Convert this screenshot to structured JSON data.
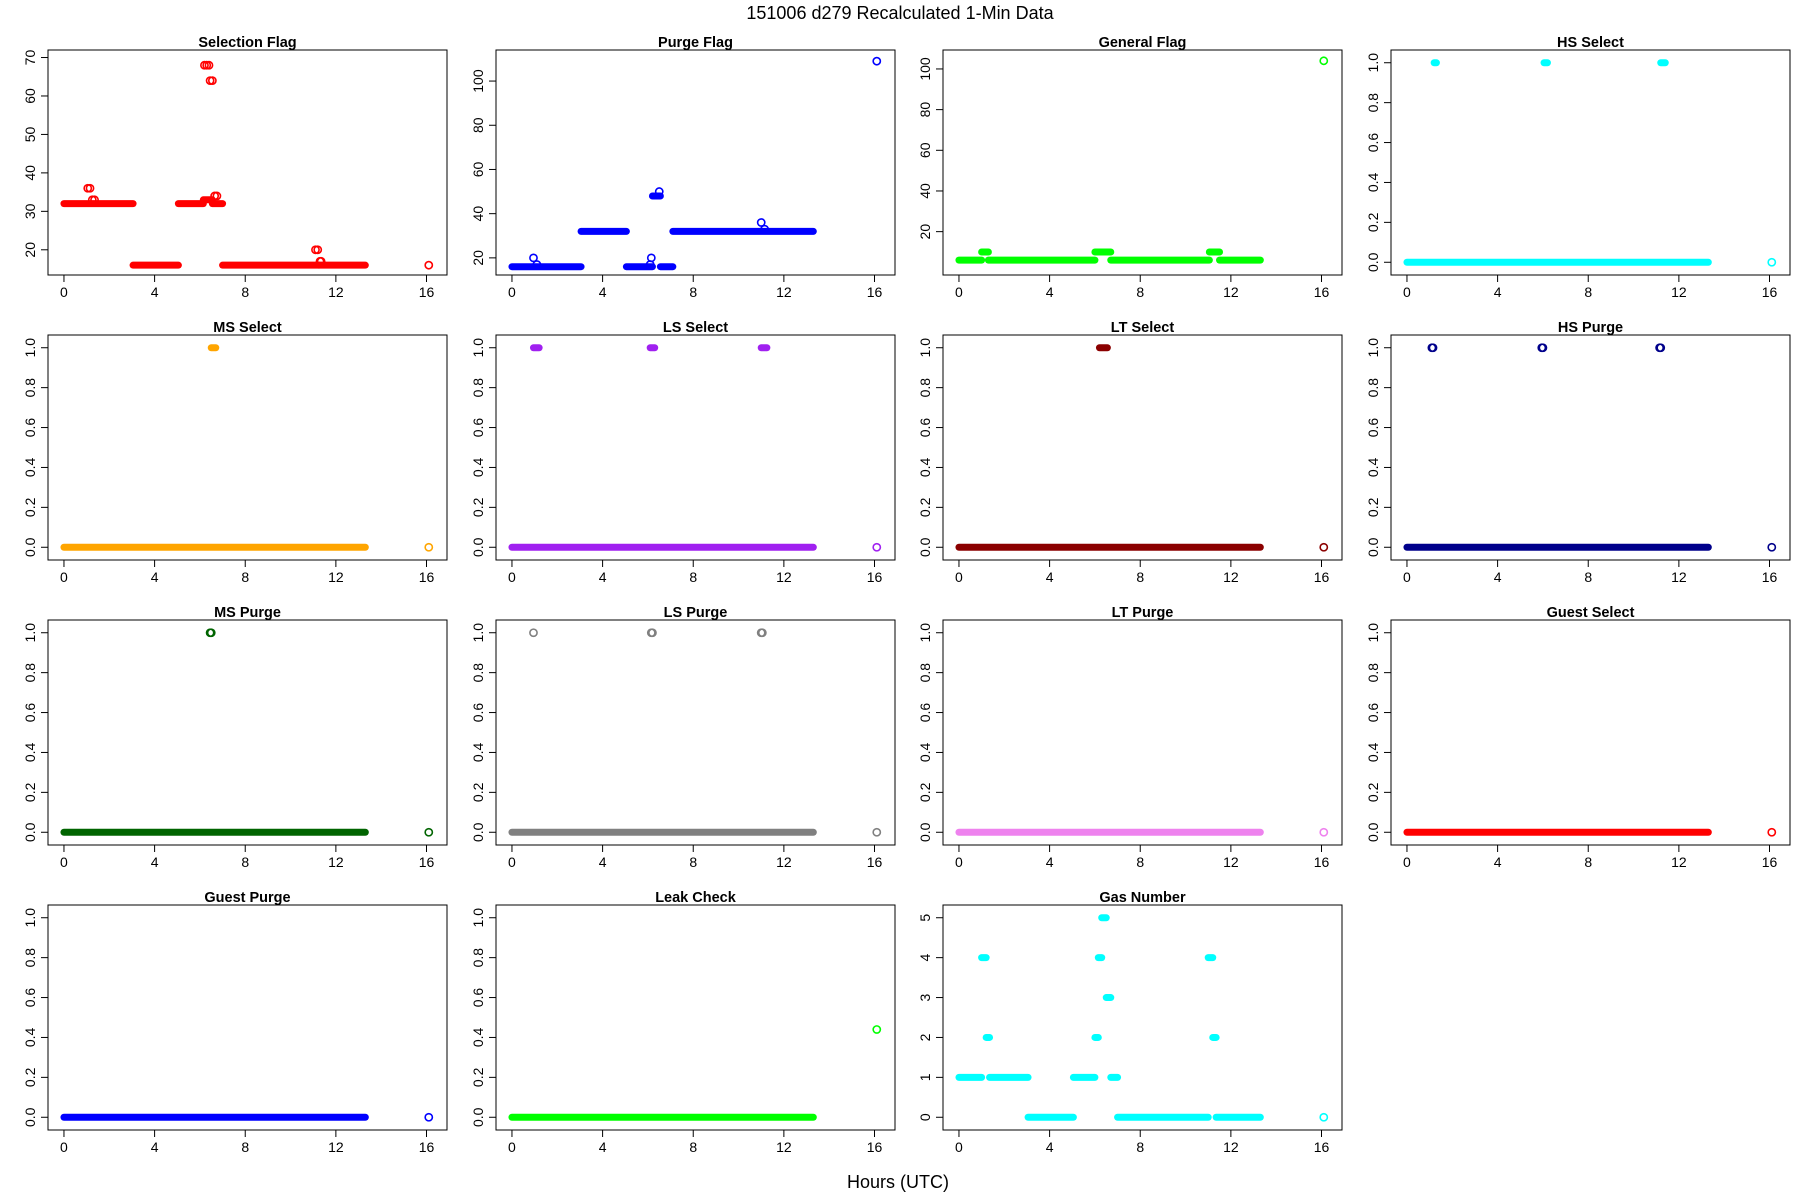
{
  "figure": {
    "title": "151006   d279   Recalculated 1-Min Data",
    "xlabel": "Hours (UTC)"
  },
  "chart_data": [
    {
      "type": "scatter",
      "title": "Selection Flag",
      "color": "#ff0000",
      "xlim": [
        0,
        16.2
      ],
      "xticks": [
        0,
        4,
        8,
        12,
        16
      ],
      "xtick_labels": [
        "0",
        "4",
        "8",
        "12",
        "16"
      ],
      "ylim": [
        15.2,
        70.2
      ],
      "yticks": [
        20,
        30,
        40,
        50,
        60,
        70
      ],
      "ytick_labels": [
        "20",
        "30",
        "40",
        "50",
        "60",
        "70"
      ],
      "segments": [
        [
          0,
          3.05,
          32
        ],
        [
          3.05,
          5.05,
          16
        ],
        [
          5.05,
          6.15,
          32
        ],
        [
          6.15,
          6.55,
          33
        ],
        [
          6.55,
          7.0,
          32
        ],
        [
          7.0,
          11.25,
          16
        ],
        [
          11.25,
          13.3,
          16
        ]
      ],
      "points": [
        [
          1.05,
          36
        ],
        [
          1.15,
          36
        ],
        [
          1.25,
          33
        ],
        [
          1.35,
          33
        ],
        [
          6.2,
          68
        ],
        [
          6.3,
          68
        ],
        [
          6.4,
          68
        ],
        [
          6.45,
          64
        ],
        [
          6.55,
          64
        ],
        [
          6.65,
          34
        ],
        [
          6.75,
          34
        ],
        [
          11.1,
          20
        ],
        [
          11.2,
          20
        ],
        [
          11.3,
          17
        ],
        [
          11.35,
          17
        ],
        [
          16.1,
          16
        ]
      ]
    },
    {
      "type": "scatter",
      "title": "Purge Flag",
      "color": "#0000ff",
      "xlim": [
        0,
        16.2
      ],
      "xticks": [
        0,
        4,
        8,
        12,
        16
      ],
      "xtick_labels": [
        "0",
        "4",
        "8",
        "12",
        "16"
      ],
      "ylim": [
        15.3,
        111
      ],
      "yticks": [
        20,
        40,
        60,
        80,
        100
      ],
      "ytick_labels": [
        "20",
        "40",
        "60",
        "80",
        "100"
      ],
      "segments": [
        [
          0,
          3.05,
          16
        ],
        [
          3.05,
          5.05,
          32
        ],
        [
          5.05,
          6.2,
          16
        ],
        [
          6.2,
          6.55,
          48
        ],
        [
          6.55,
          7.1,
          16
        ],
        [
          7.1,
          13.3,
          32
        ]
      ],
      "points": [
        [
          0.95,
          20
        ],
        [
          1.1,
          17
        ],
        [
          6.1,
          17
        ],
        [
          6.15,
          20
        ],
        [
          6.5,
          50
        ],
        [
          11.0,
          36
        ],
        [
          11.15,
          33
        ],
        [
          16.1,
          109
        ]
      ]
    },
    {
      "type": "scatter",
      "title": "General Flag",
      "color": "#00ff00",
      "xlim": [
        0,
        16.2
      ],
      "xticks": [
        0,
        4,
        8,
        12,
        16
      ],
      "xtick_labels": [
        "0",
        "4",
        "8",
        "12",
        "16"
      ],
      "ylim": [
        2,
        106
      ],
      "yticks": [
        20,
        40,
        60,
        80,
        100
      ],
      "ytick_labels": [
        "20",
        "40",
        "60",
        "80",
        "100"
      ],
      "segments": [
        [
          0,
          1.0,
          6
        ],
        [
          1.0,
          1.3,
          10
        ],
        [
          1.3,
          6.0,
          6
        ],
        [
          6.0,
          6.7,
          10
        ],
        [
          6.7,
          11.05,
          6
        ],
        [
          11.05,
          11.5,
          10
        ],
        [
          11.5,
          13.3,
          6
        ]
      ],
      "points": [
        [
          16.1,
          104
        ]
      ]
    },
    {
      "type": "scatter",
      "title": "HS Select",
      "color": "#00ffff",
      "xlim": [
        0,
        16.2
      ],
      "xticks": [
        0,
        4,
        8,
        12,
        16
      ],
      "xtick_labels": [
        "0",
        "4",
        "8",
        "12",
        "16"
      ],
      "ylim": [
        -0.03,
        1.03
      ],
      "yticks": [
        0,
        0.2,
        0.4,
        0.6,
        0.8,
        1
      ],
      "ytick_labels": [
        "0.0",
        "0.2",
        "0.4",
        "0.6",
        "0.8",
        "1.0"
      ],
      "segments": [
        [
          0,
          13.3,
          0
        ],
        [
          1.2,
          1.3,
          1
        ],
        [
          6.05,
          6.2,
          1
        ],
        [
          11.2,
          11.4,
          1
        ]
      ],
      "points": [
        [
          16.1,
          0
        ]
      ]
    },
    {
      "type": "scatter",
      "title": "MS Select",
      "color": "#ffa500",
      "xlim": [
        0,
        16.2
      ],
      "xticks": [
        0,
        4,
        8,
        12,
        16
      ],
      "xtick_labels": [
        "0",
        "4",
        "8",
        "12",
        "16"
      ],
      "ylim": [
        -0.03,
        1.03
      ],
      "yticks": [
        0,
        0.2,
        0.4,
        0.6,
        0.8,
        1
      ],
      "ytick_labels": [
        "0.0",
        "0.2",
        "0.4",
        "0.6",
        "0.8",
        "1.0"
      ],
      "segments": [
        [
          0,
          13.3,
          0
        ],
        [
          6.5,
          6.7,
          1
        ]
      ],
      "points": [
        [
          16.1,
          0
        ]
      ]
    },
    {
      "type": "scatter",
      "title": "LS Select",
      "color": "#a020f0",
      "xlim": [
        0,
        16.2
      ],
      "xticks": [
        0,
        4,
        8,
        12,
        16
      ],
      "xtick_labels": [
        "0",
        "4",
        "8",
        "12",
        "16"
      ],
      "ylim": [
        -0.03,
        1.03
      ],
      "yticks": [
        0,
        0.2,
        0.4,
        0.6,
        0.8,
        1
      ],
      "ytick_labels": [
        "0.0",
        "0.2",
        "0.4",
        "0.6",
        "0.8",
        "1.0"
      ],
      "segments": [
        [
          0,
          13.3,
          0
        ],
        [
          0.95,
          1.2,
          1
        ],
        [
          6.1,
          6.3,
          1
        ],
        [
          11.0,
          11.25,
          1
        ]
      ],
      "points": [
        [
          16.1,
          0
        ]
      ]
    },
    {
      "type": "scatter",
      "title": "LT Select",
      "color": "#8b0000",
      "xlim": [
        0,
        16.2
      ],
      "xticks": [
        0,
        4,
        8,
        12,
        16
      ],
      "xtick_labels": [
        "0",
        "4",
        "8",
        "12",
        "16"
      ],
      "ylim": [
        -0.03,
        1.03
      ],
      "yticks": [
        0,
        0.2,
        0.4,
        0.6,
        0.8,
        1
      ],
      "ytick_labels": [
        "0.0",
        "0.2",
        "0.4",
        "0.6",
        "0.8",
        "1.0"
      ],
      "segments": [
        [
          0,
          13.3,
          0
        ],
        [
          6.2,
          6.55,
          1
        ]
      ],
      "points": [
        [
          16.1,
          0
        ]
      ]
    },
    {
      "type": "scatter",
      "title": "HS Purge",
      "color": "#00008b",
      "xlim": [
        0,
        16.2
      ],
      "xticks": [
        0,
        4,
        8,
        12,
        16
      ],
      "xtick_labels": [
        "0",
        "4",
        "8",
        "12",
        "16"
      ],
      "ylim": [
        -0.03,
        1.03
      ],
      "yticks": [
        0,
        0.2,
        0.4,
        0.6,
        0.8,
        1
      ],
      "ytick_labels": [
        "0.0",
        "0.2",
        "0.4",
        "0.6",
        "0.8",
        "1.0"
      ],
      "segments": [
        [
          0,
          13.3,
          0
        ]
      ],
      "points": [
        [
          1.1,
          1
        ],
        [
          1.15,
          1
        ],
        [
          5.95,
          1
        ],
        [
          6.0,
          1
        ],
        [
          11.15,
          1
        ],
        [
          11.2,
          1
        ],
        [
          16.1,
          0
        ]
      ]
    },
    {
      "type": "scatter",
      "title": "MS Purge",
      "color": "#006400",
      "xlim": [
        0,
        16.2
      ],
      "xticks": [
        0,
        4,
        8,
        12,
        16
      ],
      "xtick_labels": [
        "0",
        "4",
        "8",
        "12",
        "16"
      ],
      "ylim": [
        -0.03,
        1.03
      ],
      "yticks": [
        0,
        0.2,
        0.4,
        0.6,
        0.8,
        1
      ],
      "ytick_labels": [
        "0.0",
        "0.2",
        "0.4",
        "0.6",
        "0.8",
        "1.0"
      ],
      "segments": [
        [
          0,
          13.3,
          0
        ]
      ],
      "points": [
        [
          6.45,
          1
        ],
        [
          6.5,
          1
        ],
        [
          16.1,
          0
        ]
      ]
    },
    {
      "type": "scatter",
      "title": "LS Purge",
      "color": "#808080",
      "xlim": [
        0,
        16.2
      ],
      "xticks": [
        0,
        4,
        8,
        12,
        16
      ],
      "xtick_labels": [
        "0",
        "4",
        "8",
        "12",
        "16"
      ],
      "ylim": [
        -0.03,
        1.03
      ],
      "yticks": [
        0,
        0.2,
        0.4,
        0.6,
        0.8,
        1
      ],
      "ytick_labels": [
        "0.0",
        "0.2",
        "0.4",
        "0.6",
        "0.8",
        "1.0"
      ],
      "segments": [
        [
          0,
          13.3,
          0
        ]
      ],
      "points": [
        [
          0.95,
          1
        ],
        [
          6.15,
          1
        ],
        [
          6.2,
          1
        ],
        [
          11.0,
          1
        ],
        [
          11.05,
          1
        ],
        [
          16.1,
          0
        ]
      ]
    },
    {
      "type": "scatter",
      "title": "LT Purge",
      "color": "#ee82ee",
      "xlim": [
        0,
        16.2
      ],
      "xticks": [
        0,
        4,
        8,
        12,
        16
      ],
      "xtick_labels": [
        "0",
        "4",
        "8",
        "12",
        "16"
      ],
      "ylim": [
        -0.03,
        1.03
      ],
      "yticks": [
        0,
        0.2,
        0.4,
        0.6,
        0.8,
        1
      ],
      "ytick_labels": [
        "0.0",
        "0.2",
        "0.4",
        "0.6",
        "0.8",
        "1.0"
      ],
      "segments": [
        [
          0,
          13.3,
          0
        ]
      ],
      "points": [
        [
          16.1,
          0
        ]
      ]
    },
    {
      "type": "scatter",
      "title": "Guest Select",
      "color": "#ff0000",
      "xlim": [
        0,
        16.2
      ],
      "xticks": [
        0,
        4,
        8,
        12,
        16
      ],
      "xtick_labels": [
        "0",
        "4",
        "8",
        "12",
        "16"
      ],
      "ylim": [
        -0.03,
        1.03
      ],
      "yticks": [
        0,
        0.2,
        0.4,
        0.6,
        0.8,
        1
      ],
      "ytick_labels": [
        "0.0",
        "0.2",
        "0.4",
        "0.6",
        "0.8",
        "1.0"
      ],
      "segments": [
        [
          0,
          13.3,
          0
        ]
      ],
      "points": [
        [
          16.1,
          0
        ]
      ]
    },
    {
      "type": "scatter",
      "title": "Guest Purge",
      "color": "#0000ff",
      "xlim": [
        0,
        16.2
      ],
      "xticks": [
        0,
        4,
        8,
        12,
        16
      ],
      "xtick_labels": [
        "0",
        "4",
        "8",
        "12",
        "16"
      ],
      "ylim": [
        -0.03,
        1.03
      ],
      "yticks": [
        0,
        0.2,
        0.4,
        0.6,
        0.8,
        1
      ],
      "ytick_labels": [
        "0.0",
        "0.2",
        "0.4",
        "0.6",
        "0.8",
        "1.0"
      ],
      "segments": [
        [
          0,
          13.3,
          0
        ]
      ],
      "points": [
        [
          16.1,
          0
        ]
      ]
    },
    {
      "type": "scatter",
      "title": "Leak Check",
      "color": "#00ff00",
      "xlim": [
        0,
        16.2
      ],
      "xticks": [
        0,
        4,
        8,
        12,
        16
      ],
      "xtick_labels": [
        "0",
        "4",
        "8",
        "12",
        "16"
      ],
      "ylim": [
        -0.03,
        1.03
      ],
      "yticks": [
        0,
        0.2,
        0.4,
        0.6,
        0.8,
        1
      ],
      "ytick_labels": [
        "0.0",
        "0.2",
        "0.4",
        "0.6",
        "0.8",
        "1.0"
      ],
      "segments": [
        [
          0,
          13.3,
          0
        ]
      ],
      "points": [
        [
          16.1,
          0.44
        ]
      ]
    },
    {
      "type": "scatter",
      "title": "Gas Number",
      "color": "#00ffff",
      "xlim": [
        0,
        16.2
      ],
      "xticks": [
        0,
        4,
        8,
        12,
        16
      ],
      "xtick_labels": [
        "0",
        "4",
        "8",
        "12",
        "16"
      ],
      "ylim": [
        -0.15,
        5.15
      ],
      "yticks": [
        0,
        1,
        2,
        3,
        4,
        5
      ],
      "ytick_labels": [
        "0",
        "1",
        "2",
        "3",
        "4",
        "5"
      ],
      "segments": [
        [
          0,
          1.0,
          1
        ],
        [
          1.0,
          1.2,
          4
        ],
        [
          1.2,
          1.35,
          2
        ],
        [
          1.35,
          3.05,
          1
        ],
        [
          3.05,
          5.05,
          0
        ],
        [
          5.05,
          6.0,
          1
        ],
        [
          6.0,
          6.15,
          2
        ],
        [
          6.15,
          6.3,
          4
        ],
        [
          6.3,
          6.5,
          5
        ],
        [
          6.5,
          6.7,
          3
        ],
        [
          6.7,
          7.0,
          1
        ],
        [
          7.0,
          11.0,
          0
        ],
        [
          11.0,
          11.2,
          4
        ],
        [
          11.2,
          11.35,
          2
        ],
        [
          11.35,
          13.3,
          0
        ]
      ],
      "points": [
        [
          16.1,
          0
        ]
      ]
    }
  ]
}
